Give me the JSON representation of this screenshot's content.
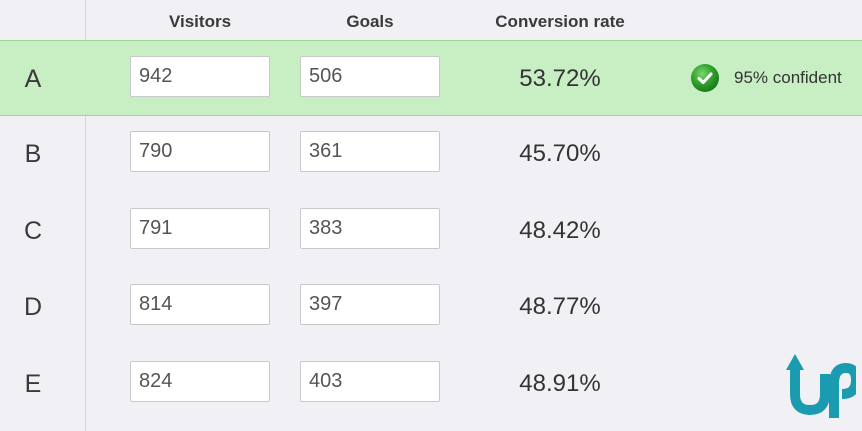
{
  "header": {
    "visitors_label": "Visitors",
    "goals_label": "Goals",
    "rate_label": "Conversion rate"
  },
  "rows": [
    {
      "label": "A",
      "visitors": "942",
      "goals": "506",
      "rate": "53.72%",
      "confidence": "95% confident"
    },
    {
      "label": "B",
      "visitors": "790",
      "goals": "361",
      "rate": "45.70%"
    },
    {
      "label": "C",
      "visitors": "791",
      "goals": "383",
      "rate": "48.42%"
    },
    {
      "label": "D",
      "visitors": "814",
      "goals": "397",
      "rate": "48.77%"
    },
    {
      "label": "E",
      "visitors": "824",
      "goals": "403",
      "rate": "48.91%"
    }
  ],
  "icons": {
    "confidence": "check-circle-icon",
    "brand": "up-logo-icon"
  },
  "colors": {
    "winner_row": "#c8eec3",
    "check_green": "#2e9e2a",
    "brand_teal": "#1a9bb0"
  }
}
